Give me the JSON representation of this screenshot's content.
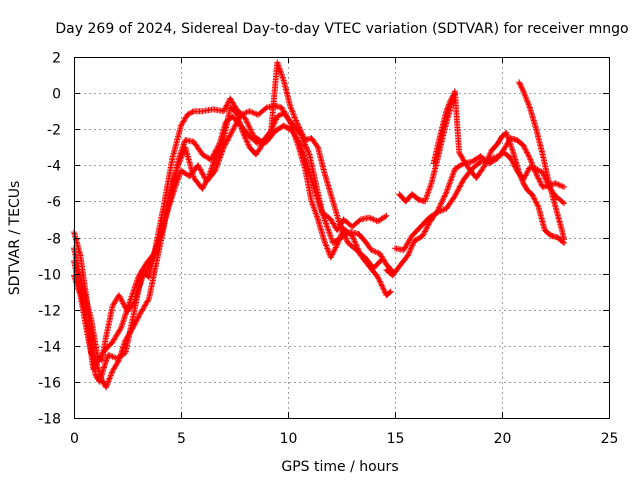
{
  "chart_data": {
    "type": "scatter",
    "title": "Day 269 of 2024, Sidereal Day-to-day VTEC variation (SDTVAR) for receiver mngo",
    "xlabel": "GPS time / hours",
    "ylabel": "SDTVAR / TECUs",
    "xlim": [
      0,
      25
    ],
    "ylim": [
      -18,
      2
    ],
    "xticks": [
      0,
      5,
      10,
      15,
      20,
      25
    ],
    "yticks": [
      2,
      0,
      -2,
      -4,
      -6,
      -8,
      -10,
      -12,
      -14,
      -16,
      -18
    ],
    "grid": true,
    "marker": "plus",
    "color": "#ff0000",
    "series": [
      {
        "name": "track-1",
        "points": [
          [
            0.0,
            -7.7
          ],
          [
            0.3,
            -9.0
          ],
          [
            0.6,
            -11.5
          ],
          [
            0.8,
            -13.8
          ],
          [
            1.0,
            -15.6
          ],
          [
            1.2,
            -16.0
          ],
          [
            1.4,
            -15.2
          ],
          [
            1.6,
            -14.5
          ],
          [
            2.0,
            -14.7
          ],
          [
            2.4,
            -14.4
          ],
          [
            2.8,
            -12.2
          ],
          [
            3.2,
            -9.8
          ],
          [
            3.5,
            -10.2
          ],
          [
            3.8,
            -8.6
          ],
          [
            4.2,
            -6.2
          ],
          [
            4.6,
            -3.6
          ],
          [
            5.0,
            -1.8
          ],
          [
            5.3,
            -1.2
          ],
          [
            5.6,
            -1.0
          ],
          [
            6.0,
            -1.0
          ],
          [
            6.5,
            -0.9
          ],
          [
            7.0,
            -1.0
          ],
          [
            7.3,
            -0.3
          ],
          [
            7.6,
            -0.9
          ],
          [
            8.0,
            -1.4
          ],
          [
            8.4,
            -2.4
          ],
          [
            8.8,
            -2.7
          ],
          [
            9.2,
            -2.1
          ],
          [
            9.5,
            -1.3
          ],
          [
            9.8,
            -1.1
          ],
          [
            10.2,
            -1.7
          ],
          [
            10.6,
            -2.3
          ],
          [
            11.0,
            -3.4
          ],
          [
            11.3,
            -5.0
          ],
          [
            11.6,
            -6.6
          ],
          [
            12.0,
            -7.0
          ],
          [
            12.3,
            -7.6
          ],
          [
            12.6,
            -7.0
          ],
          [
            13.0,
            -7.4
          ],
          [
            13.4,
            -7.0
          ],
          [
            13.8,
            -6.9
          ],
          [
            14.2,
            -7.1
          ],
          [
            14.6,
            -6.8
          ]
        ]
      },
      {
        "name": "track-2",
        "points": [
          [
            0.0,
            -8.6
          ],
          [
            0.4,
            -10.7
          ],
          [
            0.8,
            -12.5
          ],
          [
            1.1,
            -14.6
          ],
          [
            1.3,
            -14.8
          ],
          [
            1.5,
            -13.5
          ],
          [
            1.8,
            -11.8
          ],
          [
            2.1,
            -11.2
          ],
          [
            2.5,
            -12.1
          ],
          [
            2.8,
            -11.6
          ],
          [
            3.2,
            -10.2
          ],
          [
            3.6,
            -9.4
          ],
          [
            4.0,
            -8.0
          ],
          [
            4.3,
            -6.8
          ],
          [
            4.6,
            -5.4
          ],
          [
            4.9,
            -3.6
          ],
          [
            5.2,
            -2.6
          ],
          [
            5.6,
            -2.7
          ],
          [
            6.0,
            -3.4
          ],
          [
            6.4,
            -3.7
          ],
          [
            6.8,
            -2.8
          ],
          [
            7.1,
            -1.6
          ],
          [
            7.4,
            -1.3
          ],
          [
            7.8,
            -1.8
          ],
          [
            8.2,
            -2.4
          ],
          [
            8.6,
            -2.8
          ],
          [
            9.0,
            -2.7
          ],
          [
            9.4,
            -2.1
          ],
          [
            9.8,
            -1.8
          ],
          [
            10.2,
            -2.1
          ],
          [
            10.6,
            -2.9
          ],
          [
            10.9,
            -4.0
          ],
          [
            11.2,
            -5.2
          ],
          [
            11.5,
            -6.3
          ],
          [
            11.8,
            -7.3
          ],
          [
            12.1,
            -8.3
          ],
          [
            12.5,
            -8.0
          ],
          [
            12.9,
            -7.7
          ],
          [
            13.3,
            -7.8
          ],
          [
            13.6,
            -8.2
          ],
          [
            13.9,
            -8.7
          ],
          [
            14.3,
            -8.9
          ],
          [
            14.6,
            -9.5
          ],
          [
            14.9,
            -9.9
          ]
        ]
      },
      {
        "name": "track-3",
        "points": [
          [
            0.0,
            -9.3
          ],
          [
            0.2,
            -10.4
          ],
          [
            0.6,
            -12.6
          ],
          [
            0.9,
            -15.3
          ],
          [
            1.1,
            -14.9
          ],
          [
            1.4,
            -14.3
          ],
          [
            1.8,
            -13.8
          ],
          [
            2.2,
            -13.0
          ],
          [
            2.6,
            -11.6
          ],
          [
            3.0,
            -10.2
          ],
          [
            3.4,
            -9.4
          ],
          [
            3.8,
            -8.8
          ],
          [
            4.1,
            -7.7
          ],
          [
            4.4,
            -6.4
          ],
          [
            4.7,
            -5.3
          ],
          [
            5.0,
            -4.3
          ],
          [
            5.4,
            -4.6
          ],
          [
            5.8,
            -4.0
          ],
          [
            6.2,
            -4.9
          ],
          [
            6.6,
            -4.3
          ],
          [
            7.0,
            -3.0
          ],
          [
            7.4,
            -2.1
          ],
          [
            7.8,
            -1.2
          ],
          [
            8.2,
            -1.0
          ],
          [
            8.6,
            -1.2
          ],
          [
            9.0,
            -0.8
          ],
          [
            9.4,
            -0.7
          ],
          [
            9.7,
            -0.8
          ],
          [
            10.1,
            -1.6
          ],
          [
            10.5,
            -3.0
          ],
          [
            10.8,
            -4.2
          ],
          [
            11.1,
            -6.0
          ],
          [
            11.4,
            -7.0
          ],
          [
            11.7,
            -8.2
          ],
          [
            12.0,
            -9.1
          ],
          [
            12.3,
            -8.4
          ],
          [
            12.6,
            -7.5
          ],
          [
            13.0,
            -7.9
          ],
          [
            13.4,
            -9.0
          ],
          [
            13.8,
            -9.6
          ],
          [
            14.2,
            -10.2
          ],
          [
            14.6,
            -11.2
          ],
          [
            14.8,
            -11.0
          ]
        ]
      },
      {
        "name": "track-4",
        "points": [
          [
            0.0,
            -10.1
          ],
          [
            0.3,
            -11.2
          ],
          [
            0.6,
            -13.2
          ],
          [
            0.8,
            -14.4
          ],
          [
            1.0,
            -14.8
          ],
          [
            1.3,
            -15.9
          ],
          [
            1.5,
            -16.3
          ],
          [
            1.8,
            -15.4
          ],
          [
            2.1,
            -14.8
          ],
          [
            2.4,
            -13.7
          ],
          [
            2.8,
            -12.9
          ],
          [
            3.1,
            -12.2
          ],
          [
            3.5,
            -11.4
          ],
          [
            3.8,
            -9.7
          ],
          [
            4.2,
            -7.4
          ],
          [
            4.5,
            -5.4
          ],
          [
            4.8,
            -4.2
          ],
          [
            5.2,
            -3.0
          ],
          [
            5.6,
            -4.7
          ],
          [
            6.0,
            -5.3
          ],
          [
            6.3,
            -4.6
          ],
          [
            6.6,
            -3.6
          ],
          [
            7.0,
            -2.5
          ],
          [
            7.3,
            -0.8
          ],
          [
            7.6,
            -1.1
          ],
          [
            7.9,
            -2.2
          ],
          [
            8.2,
            -3.0
          ],
          [
            8.5,
            -3.4
          ],
          [
            8.9,
            -2.7
          ],
          [
            9.2,
            -2.2
          ],
          [
            9.5,
            1.7
          ],
          [
            9.8,
            0.7
          ],
          [
            10.1,
            -0.7
          ],
          [
            10.4,
            -1.6
          ],
          [
            10.8,
            -2.6
          ],
          [
            11.1,
            -2.5
          ],
          [
            11.4,
            -3.0
          ],
          [
            11.7,
            -4.4
          ],
          [
            12.0,
            -5.6
          ],
          [
            12.4,
            -7.2
          ],
          [
            12.8,
            -8.3
          ],
          [
            13.2,
            -8.7
          ],
          [
            13.6,
            -9.1
          ],
          [
            14.0,
            -9.7
          ],
          [
            14.4,
            -9.2
          ]
        ]
      },
      {
        "name": "track-5",
        "points": [
          [
            14.6,
            -9.8
          ],
          [
            14.9,
            -10.1
          ],
          [
            15.2,
            -9.6
          ],
          [
            15.6,
            -9.0
          ],
          [
            15.9,
            -8.2
          ],
          [
            16.3,
            -7.9
          ],
          [
            16.6,
            -7.2
          ],
          [
            17.0,
            -6.5
          ],
          [
            17.4,
            -5.5
          ],
          [
            17.8,
            -4.2
          ],
          [
            18.2,
            -3.9
          ],
          [
            18.6,
            -3.8
          ],
          [
            19.0,
            -3.5
          ],
          [
            19.4,
            -3.9
          ],
          [
            19.8,
            -3.6
          ],
          [
            20.1,
            -3.1
          ],
          [
            20.4,
            -2.5
          ],
          [
            20.7,
            -2.6
          ],
          [
            21.0,
            -2.9
          ],
          [
            21.3,
            -3.6
          ],
          [
            21.6,
            -4.5
          ],
          [
            21.9,
            -5.2
          ],
          [
            22.2,
            -5.1
          ],
          [
            22.5,
            -5.0
          ],
          [
            22.9,
            -5.2
          ]
        ]
      },
      {
        "name": "track-6",
        "points": [
          [
            15.0,
            -8.6
          ],
          [
            15.4,
            -8.7
          ],
          [
            15.8,
            -7.9
          ],
          [
            16.2,
            -7.4
          ],
          [
            16.6,
            -6.9
          ],
          [
            17.0,
            -6.6
          ],
          [
            17.4,
            -6.4
          ],
          [
            17.8,
            -5.7
          ],
          [
            18.2,
            -4.8
          ],
          [
            18.6,
            -4.2
          ],
          [
            19.0,
            -3.8
          ],
          [
            19.4,
            -3.7
          ],
          [
            19.8,
            -3.5
          ],
          [
            20.1,
            -3.3
          ],
          [
            20.4,
            -3.6
          ],
          [
            20.7,
            -4.3
          ],
          [
            21.0,
            -4.8
          ],
          [
            21.3,
            -4.1
          ],
          [
            21.6,
            -4.2
          ],
          [
            21.9,
            -4.4
          ],
          [
            22.2,
            -5.2
          ],
          [
            22.5,
            -5.7
          ],
          [
            22.9,
            -6.1
          ]
        ]
      },
      {
        "name": "track-7",
        "points": [
          [
            15.2,
            -5.6
          ],
          [
            15.5,
            -6.0
          ],
          [
            15.8,
            -5.6
          ],
          [
            16.1,
            -5.9
          ],
          [
            16.4,
            -6.0
          ],
          [
            16.7,
            -5.0
          ],
          [
            17.0,
            -3.6
          ],
          [
            17.3,
            -2.1
          ],
          [
            17.6,
            -0.8
          ],
          [
            17.8,
            0.1
          ],
          [
            18.0,
            -3.3
          ],
          [
            18.4,
            -4.1
          ],
          [
            18.8,
            -4.7
          ],
          [
            19.2,
            -4.0
          ],
          [
            19.5,
            -3.2
          ],
          [
            19.8,
            -2.8
          ],
          [
            20.0,
            -2.4
          ],
          [
            20.2,
            -2.2
          ],
          [
            20.5,
            -3.2
          ],
          [
            20.8,
            -4.4
          ],
          [
            21.0,
            -5.0
          ],
          [
            21.2,
            -5.4
          ],
          [
            21.4,
            -5.6
          ],
          [
            21.7,
            -6.3
          ],
          [
            22.0,
            -7.6
          ],
          [
            22.3,
            -7.9
          ],
          [
            22.6,
            -8.0
          ],
          [
            22.9,
            -8.3
          ]
        ]
      },
      {
        "name": "track-8",
        "points": [
          [
            16.8,
            -3.9
          ],
          [
            17.1,
            -2.4
          ],
          [
            17.4,
            -1.0
          ],
          [
            17.6,
            -0.4
          ],
          [
            17.8,
            0.0
          ]
        ]
      },
      {
        "name": "track-9",
        "points": [
          [
            20.8,
            0.6
          ],
          [
            21.0,
            0.1
          ],
          [
            21.3,
            -0.8
          ],
          [
            21.6,
            -2.0
          ],
          [
            21.9,
            -3.4
          ],
          [
            22.2,
            -5.0
          ],
          [
            22.5,
            -6.3
          ],
          [
            22.8,
            -7.6
          ],
          [
            22.9,
            -8.1
          ]
        ]
      }
    ]
  }
}
